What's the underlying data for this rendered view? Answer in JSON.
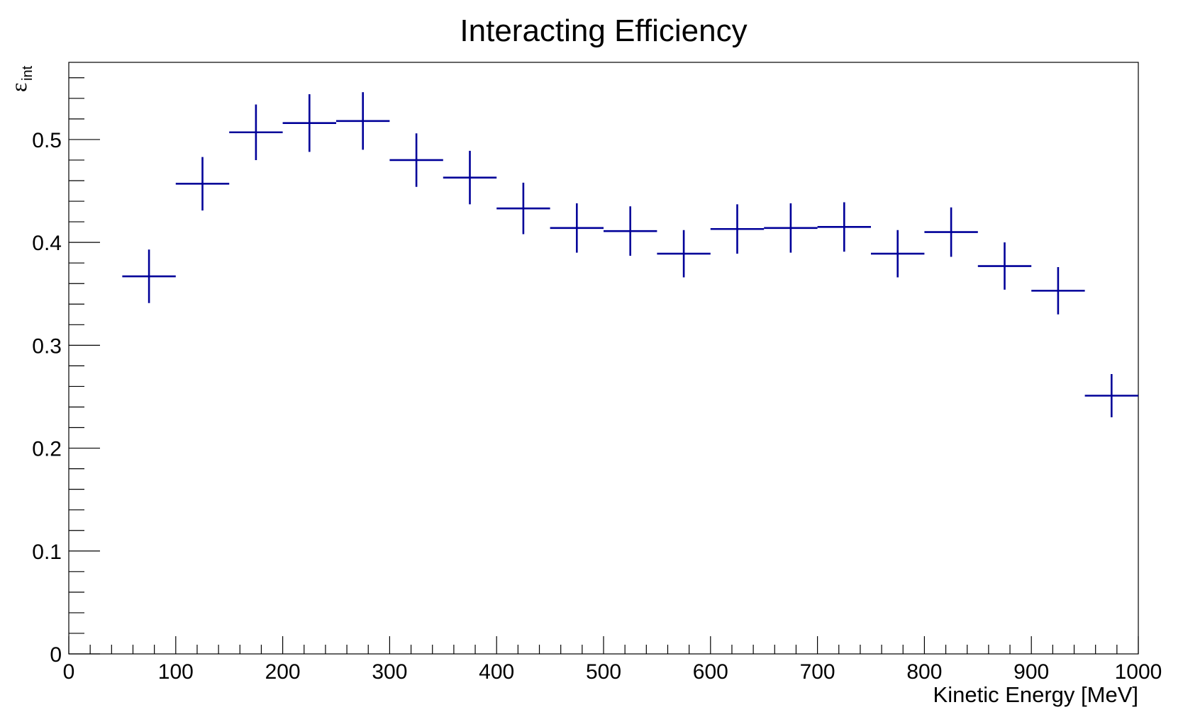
{
  "chart_data": {
    "type": "scatter",
    "title": "Interacting Efficiency",
    "xlabel": "Kinetic Energy [MeV]",
    "ylabel_main": "ε",
    "ylabel_sub": "int",
    "xlim": [
      0,
      1000
    ],
    "ylim": [
      0,
      0.575
    ],
    "x_major_ticks": [
      0,
      100,
      200,
      300,
      400,
      500,
      600,
      700,
      800,
      900,
      1000
    ],
    "x_tick_labels": [
      "0",
      "100",
      "200",
      "300",
      "400",
      "500",
      "600",
      "700",
      "800",
      "900",
      "1000"
    ],
    "y_major_ticks": [
      0,
      0.1,
      0.2,
      0.3,
      0.4,
      0.5
    ],
    "y_tick_labels": [
      "0",
      "0.1",
      "0.2",
      "0.3",
      "0.4",
      "0.5"
    ],
    "grid": false,
    "marker_color": "#000099",
    "series": [
      {
        "points": [
          {
            "x": 75,
            "y": 0.367,
            "xlow": 50,
            "xhigh": 100,
            "err": 0.026
          },
          {
            "x": 125,
            "y": 0.457,
            "xlow": 100,
            "xhigh": 150,
            "err": 0.026
          },
          {
            "x": 175,
            "y": 0.507,
            "xlow": 150,
            "xhigh": 200,
            "err": 0.027
          },
          {
            "x": 225,
            "y": 0.516,
            "xlow": 200,
            "xhigh": 250,
            "err": 0.028
          },
          {
            "x": 275,
            "y": 0.518,
            "xlow": 250,
            "xhigh": 300,
            "err": 0.028
          },
          {
            "x": 325,
            "y": 0.48,
            "xlow": 300,
            "xhigh": 350,
            "err": 0.026
          },
          {
            "x": 375,
            "y": 0.463,
            "xlow": 350,
            "xhigh": 400,
            "err": 0.026
          },
          {
            "x": 425,
            "y": 0.433,
            "xlow": 400,
            "xhigh": 450,
            "err": 0.025
          },
          {
            "x": 475,
            "y": 0.414,
            "xlow": 450,
            "xhigh": 500,
            "err": 0.024
          },
          {
            "x": 525,
            "y": 0.411,
            "xlow": 500,
            "xhigh": 550,
            "err": 0.024
          },
          {
            "x": 575,
            "y": 0.389,
            "xlow": 550,
            "xhigh": 600,
            "err": 0.023
          },
          {
            "x": 625,
            "y": 0.413,
            "xlow": 600,
            "xhigh": 650,
            "err": 0.024
          },
          {
            "x": 675,
            "y": 0.414,
            "xlow": 650,
            "xhigh": 700,
            "err": 0.024
          },
          {
            "x": 725,
            "y": 0.415,
            "xlow": 700,
            "xhigh": 750,
            "err": 0.024
          },
          {
            "x": 775,
            "y": 0.389,
            "xlow": 750,
            "xhigh": 800,
            "err": 0.023
          },
          {
            "x": 825,
            "y": 0.41,
            "xlow": 800,
            "xhigh": 850,
            "err": 0.024
          },
          {
            "x": 875,
            "y": 0.377,
            "xlow": 850,
            "xhigh": 900,
            "err": 0.023
          },
          {
            "x": 925,
            "y": 0.353,
            "xlow": 900,
            "xhigh": 950,
            "err": 0.023
          },
          {
            "x": 975,
            "y": 0.251,
            "xlow": 950,
            "xhigh": 1000,
            "err": 0.021
          }
        ]
      }
    ]
  }
}
